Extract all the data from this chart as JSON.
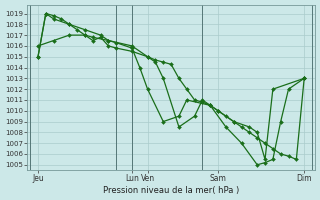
{
  "xlabel": "Pression niveau de la mer( hPa )",
  "bg_color": "#cce8e8",
  "grid_color": "#aacccc",
  "line_color": "#1a6e1a",
  "ylim_min": 1004.5,
  "ylim_max": 1019.8,
  "xlim_min": -0.2,
  "xlim_max": 18.2,
  "ytick_min": 1005,
  "ytick_max": 1019,
  "xtick_positions": [
    0.5,
    6.5,
    7.5,
    12.0,
    17.5
  ],
  "xtick_labels": [
    "Jeu",
    "Lun",
    "Ven",
    "Sam",
    "Dim"
  ],
  "vlines": [
    0,
    5.5,
    6.5,
    11.0,
    18.0
  ],
  "series1_x": [
    0.5,
    1.0,
    1.5,
    2.0,
    2.5,
    3.0,
    3.5,
    4.0,
    4.5,
    5.0,
    5.5,
    6.5,
    7.5,
    8.0,
    8.5,
    9.0,
    9.5,
    10.0,
    10.5,
    11.0,
    11.5,
    12.0,
    12.5,
    13.0,
    13.5,
    14.0,
    14.5,
    15.0,
    15.5,
    16.0,
    16.5,
    17.0,
    17.5
  ],
  "series1_y": [
    1015.0,
    1019.0,
    1018.8,
    1018.5,
    1018.0,
    1017.5,
    1017.0,
    1016.5,
    1016.8,
    1016.0,
    1015.8,
    1015.5,
    1015.0,
    1014.7,
    1014.5,
    1014.3,
    1013.0,
    1012.0,
    1011.0,
    1010.8,
    1010.5,
    1010.0,
    1009.5,
    1009.0,
    1008.5,
    1008.0,
    1007.5,
    1007.0,
    1006.5,
    1006.0,
    1005.8,
    1005.5,
    1013.0
  ],
  "series2_x": [
    0.5,
    1.0,
    1.5,
    2.5,
    3.5,
    4.5,
    5.0,
    6.5,
    7.5,
    8.0,
    8.5,
    9.5,
    10.5,
    11.0,
    11.5,
    12.0,
    13.0,
    14.0,
    14.5,
    15.0,
    15.5,
    17.5
  ],
  "series2_y": [
    1015.0,
    1019.0,
    1018.5,
    1018.0,
    1017.5,
    1017.0,
    1016.5,
    1016.0,
    1015.0,
    1014.5,
    1013.0,
    1008.5,
    1009.5,
    1011.0,
    1010.5,
    1010.0,
    1009.0,
    1008.5,
    1008.0,
    1005.5,
    1012.0,
    1013.0
  ],
  "series3_x": [
    0.5,
    1.5,
    2.5,
    3.5,
    4.0,
    5.0,
    5.5,
    6.5,
    7.0,
    7.5,
    8.5,
    9.5,
    10.0,
    11.5,
    12.5,
    13.5,
    14.5,
    15.0,
    15.5,
    16.0,
    16.5,
    17.5
  ],
  "series3_y": [
    1016.0,
    1016.5,
    1017.0,
    1017.0,
    1016.8,
    1016.5,
    1016.3,
    1015.8,
    1014.0,
    1012.0,
    1009.0,
    1009.5,
    1011.0,
    1010.5,
    1008.5,
    1007.0,
    1005.0,
    1005.2,
    1005.5,
    1009.0,
    1012.0,
    1013.0
  ]
}
